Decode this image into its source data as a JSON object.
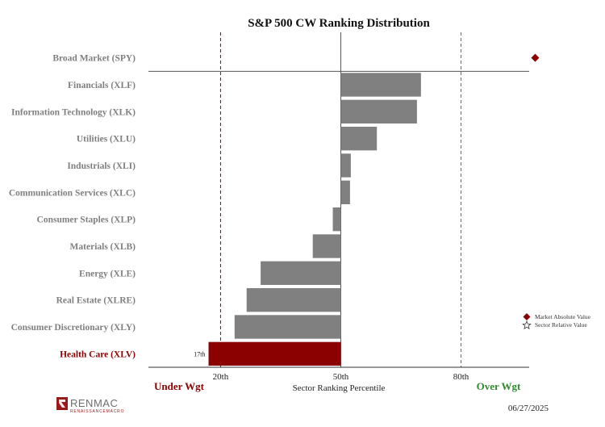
{
  "chart_data": {
    "type": "bar",
    "orientation": "horizontal",
    "title": "S&P 500 CW Ranking Distribution",
    "xlabel": "Sector Ranking Percentile",
    "xlim": [
      2,
      97
    ],
    "baseline": 50,
    "reference_lines": [
      {
        "value": 20,
        "label": "20th",
        "color": "#8b0000"
      },
      {
        "value": 50,
        "label": "50th",
        "color": "#555555"
      },
      {
        "value": 80,
        "label": "80th",
        "color": "#2e8b2e"
      }
    ],
    "zone_labels": {
      "under": {
        "text": "Under Wgt",
        "color": "#8b0000"
      },
      "over": {
        "text": "Over Wgt",
        "color": "#2e8b2e"
      }
    },
    "market": {
      "category": "Broad Market (SPY)",
      "value": 98.5
    },
    "categories": [
      "Financials (XLF)",
      "Information Technology (XLK)",
      "Utilities (XLU)",
      "Industrials (XLI)",
      "Communication Services (XLC)",
      "Consumer Staples (XLP)",
      "Materials (XLB)",
      "Energy (XLE)",
      "Real Estate (XLRE)",
      "Consumer Discretionary (XLY)",
      "Health Care (XLV)"
    ],
    "values": [
      70,
      69,
      59,
      52.5,
      52.3,
      48,
      43,
      30,
      26.5,
      23.5,
      17
    ],
    "highlight": {
      "index": 10,
      "label": "17th",
      "color": "#8b0000"
    },
    "bar_color": "#808080",
    "legend": {
      "placement": "bottom-right",
      "entries": [
        {
          "label": "Market Absolute Value",
          "marker": "diamond",
          "color": "#8b0000"
        },
        {
          "label": "Sector Relative Value",
          "marker": "star",
          "color": "#333333"
        }
      ]
    }
  },
  "footer": {
    "date": "06/27/2025",
    "logo_text": "RENMAC",
    "logo_subtext": "RENAISSANCEMACRO"
  }
}
